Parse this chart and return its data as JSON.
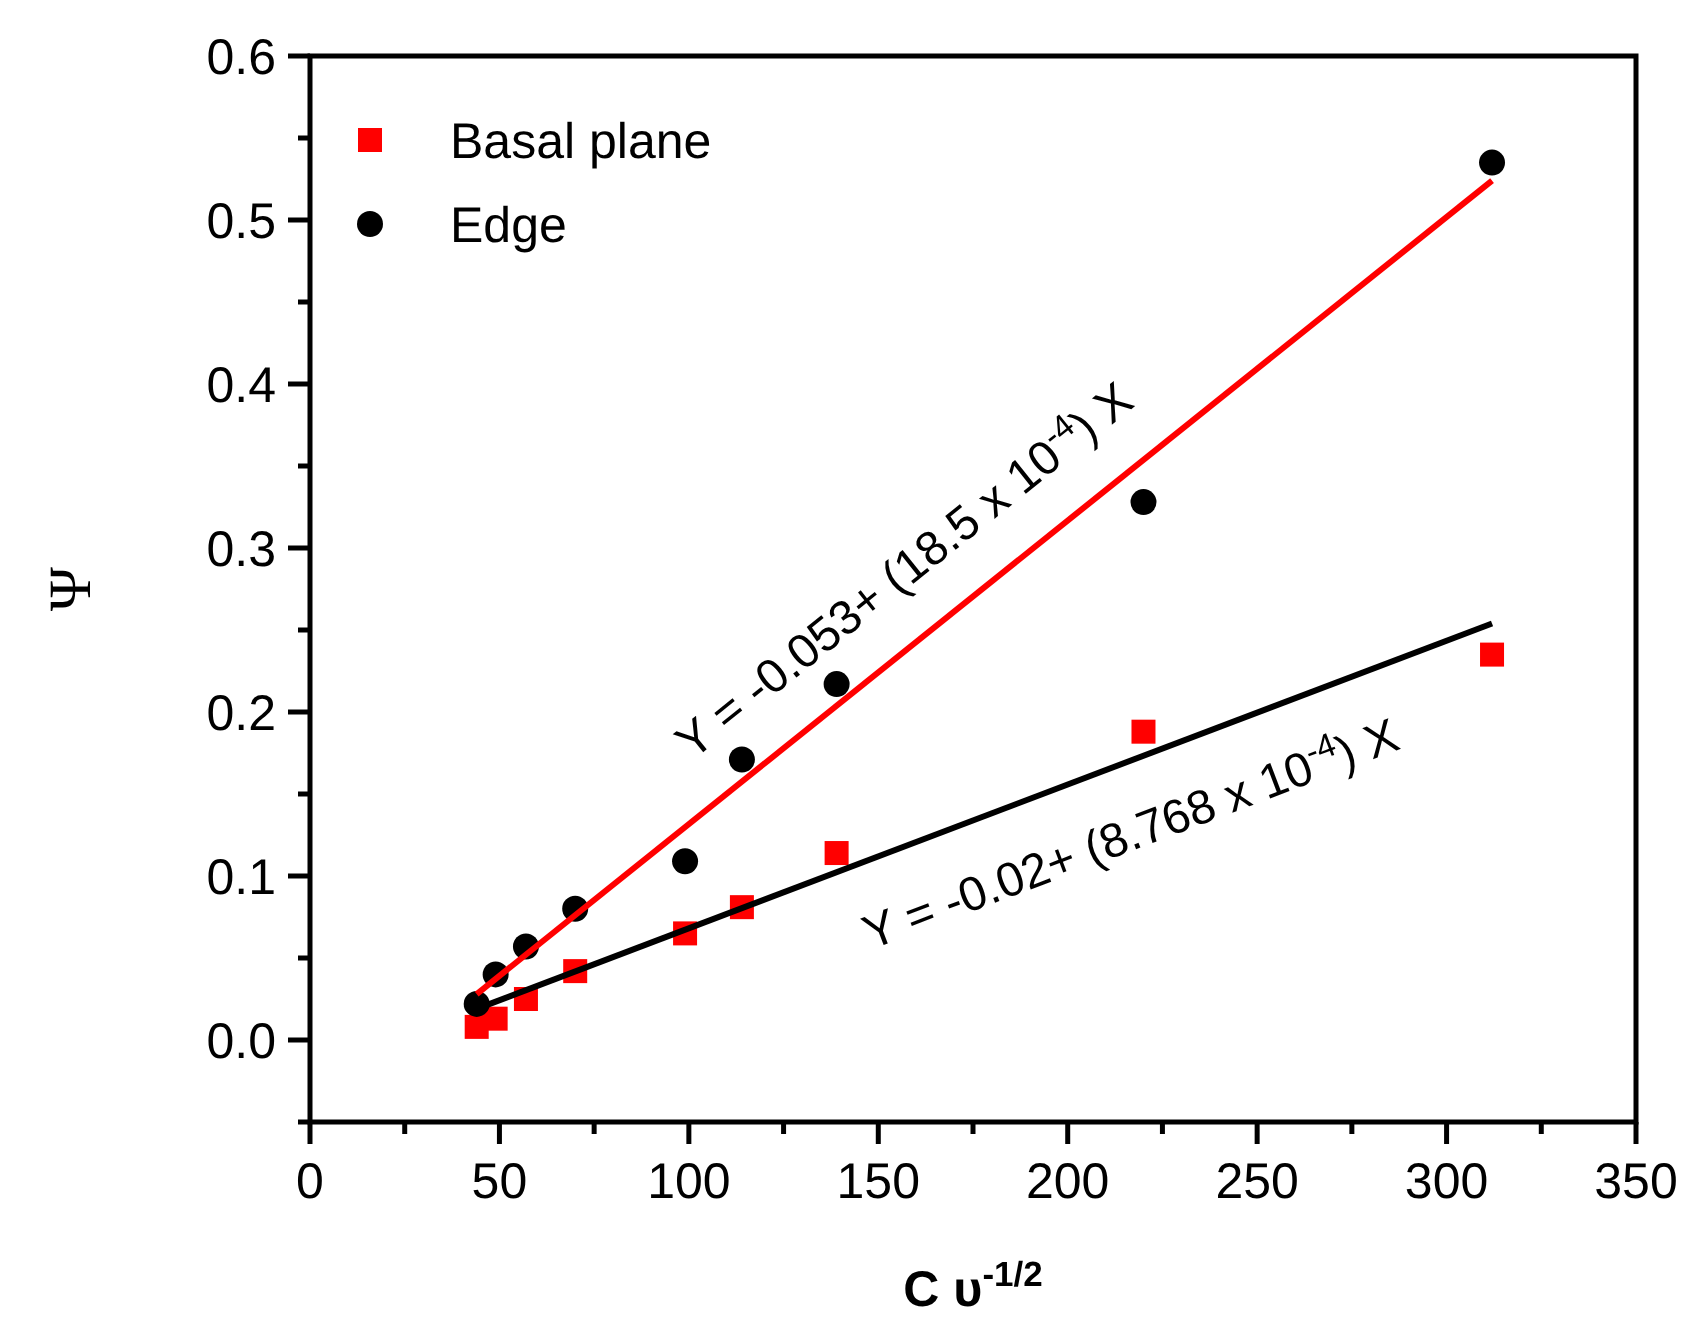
{
  "chart_data": {
    "type": "scatter",
    "xlabel": "C υ$^{-1/2}$",
    "ylabel": "Ψ",
    "xlim": [
      0,
      350
    ],
    "ylim": [
      -0.05,
      0.6
    ],
    "xticks": [
      0,
      {
        "value": 25,
        "label": null
      },
      50,
      {
        "value": 75,
        "label": null
      },
      100,
      {
        "value": 125,
        "label": null
      },
      150,
      {
        "value": 175,
        "label": null
      },
      200,
      {
        "value": 225,
        "label": null
      },
      250,
      {
        "value": 275,
        "label": null
      },
      300,
      {
        "value": 325,
        "label": null
      },
      350
    ],
    "yticks": [
      {
        "value": -0.05,
        "label": null
      },
      {
        "value": 0,
        "label": "0.0"
      },
      {
        "value": 0.05,
        "label": null
      },
      0.1,
      {
        "value": 0.15,
        "label": null
      },
      0.2,
      {
        "value": 0.25,
        "label": null
      },
      0.3,
      {
        "value": 0.35,
        "label": null
      },
      0.4,
      {
        "value": 0.45,
        "label": null
      },
      0.5,
      {
        "value": 0.55,
        "label": null
      },
      0.6
    ],
    "legend": "top left",
    "grid": false,
    "series": [
      {
        "name": "Basal plane",
        "color": "#ff0000",
        "marker": "square",
        "x": [
          44,
          49,
          57,
          70,
          99,
          114,
          139,
          220,
          312
        ],
        "values": [
          0.008,
          0.013,
          0.025,
          0.042,
          0.065,
          0.081,
          0.114,
          0.188,
          0.235
        ]
      },
      {
        "name": "Edge",
        "color": "#000000",
        "marker": "circle",
        "x": [
          44,
          49,
          57,
          70,
          99,
          114,
          139,
          220,
          312
        ],
        "values": [
          0.022,
          0.04,
          0.057,
          0.08,
          0.109,
          0.171,
          0.217,
          0.328,
          0.535
        ]
      },
      {
        "type": "line",
        "color": "#ff0000",
        "x": [
          44,
          312
        ],
        "values": [
          0.028,
          0.524
        ]
      },
      {
        "type": "line",
        "color": "#000000",
        "x": [
          44,
          312
        ],
        "values": [
          0.019,
          0.254
        ]
      }
    ],
    "annotations": [
      "Y = -0.053+ (18.5 x 10$^{-4}$) X",
      "Y = -0.02+ (8.768 x 10$^{-4}$) X"
    ]
  }
}
